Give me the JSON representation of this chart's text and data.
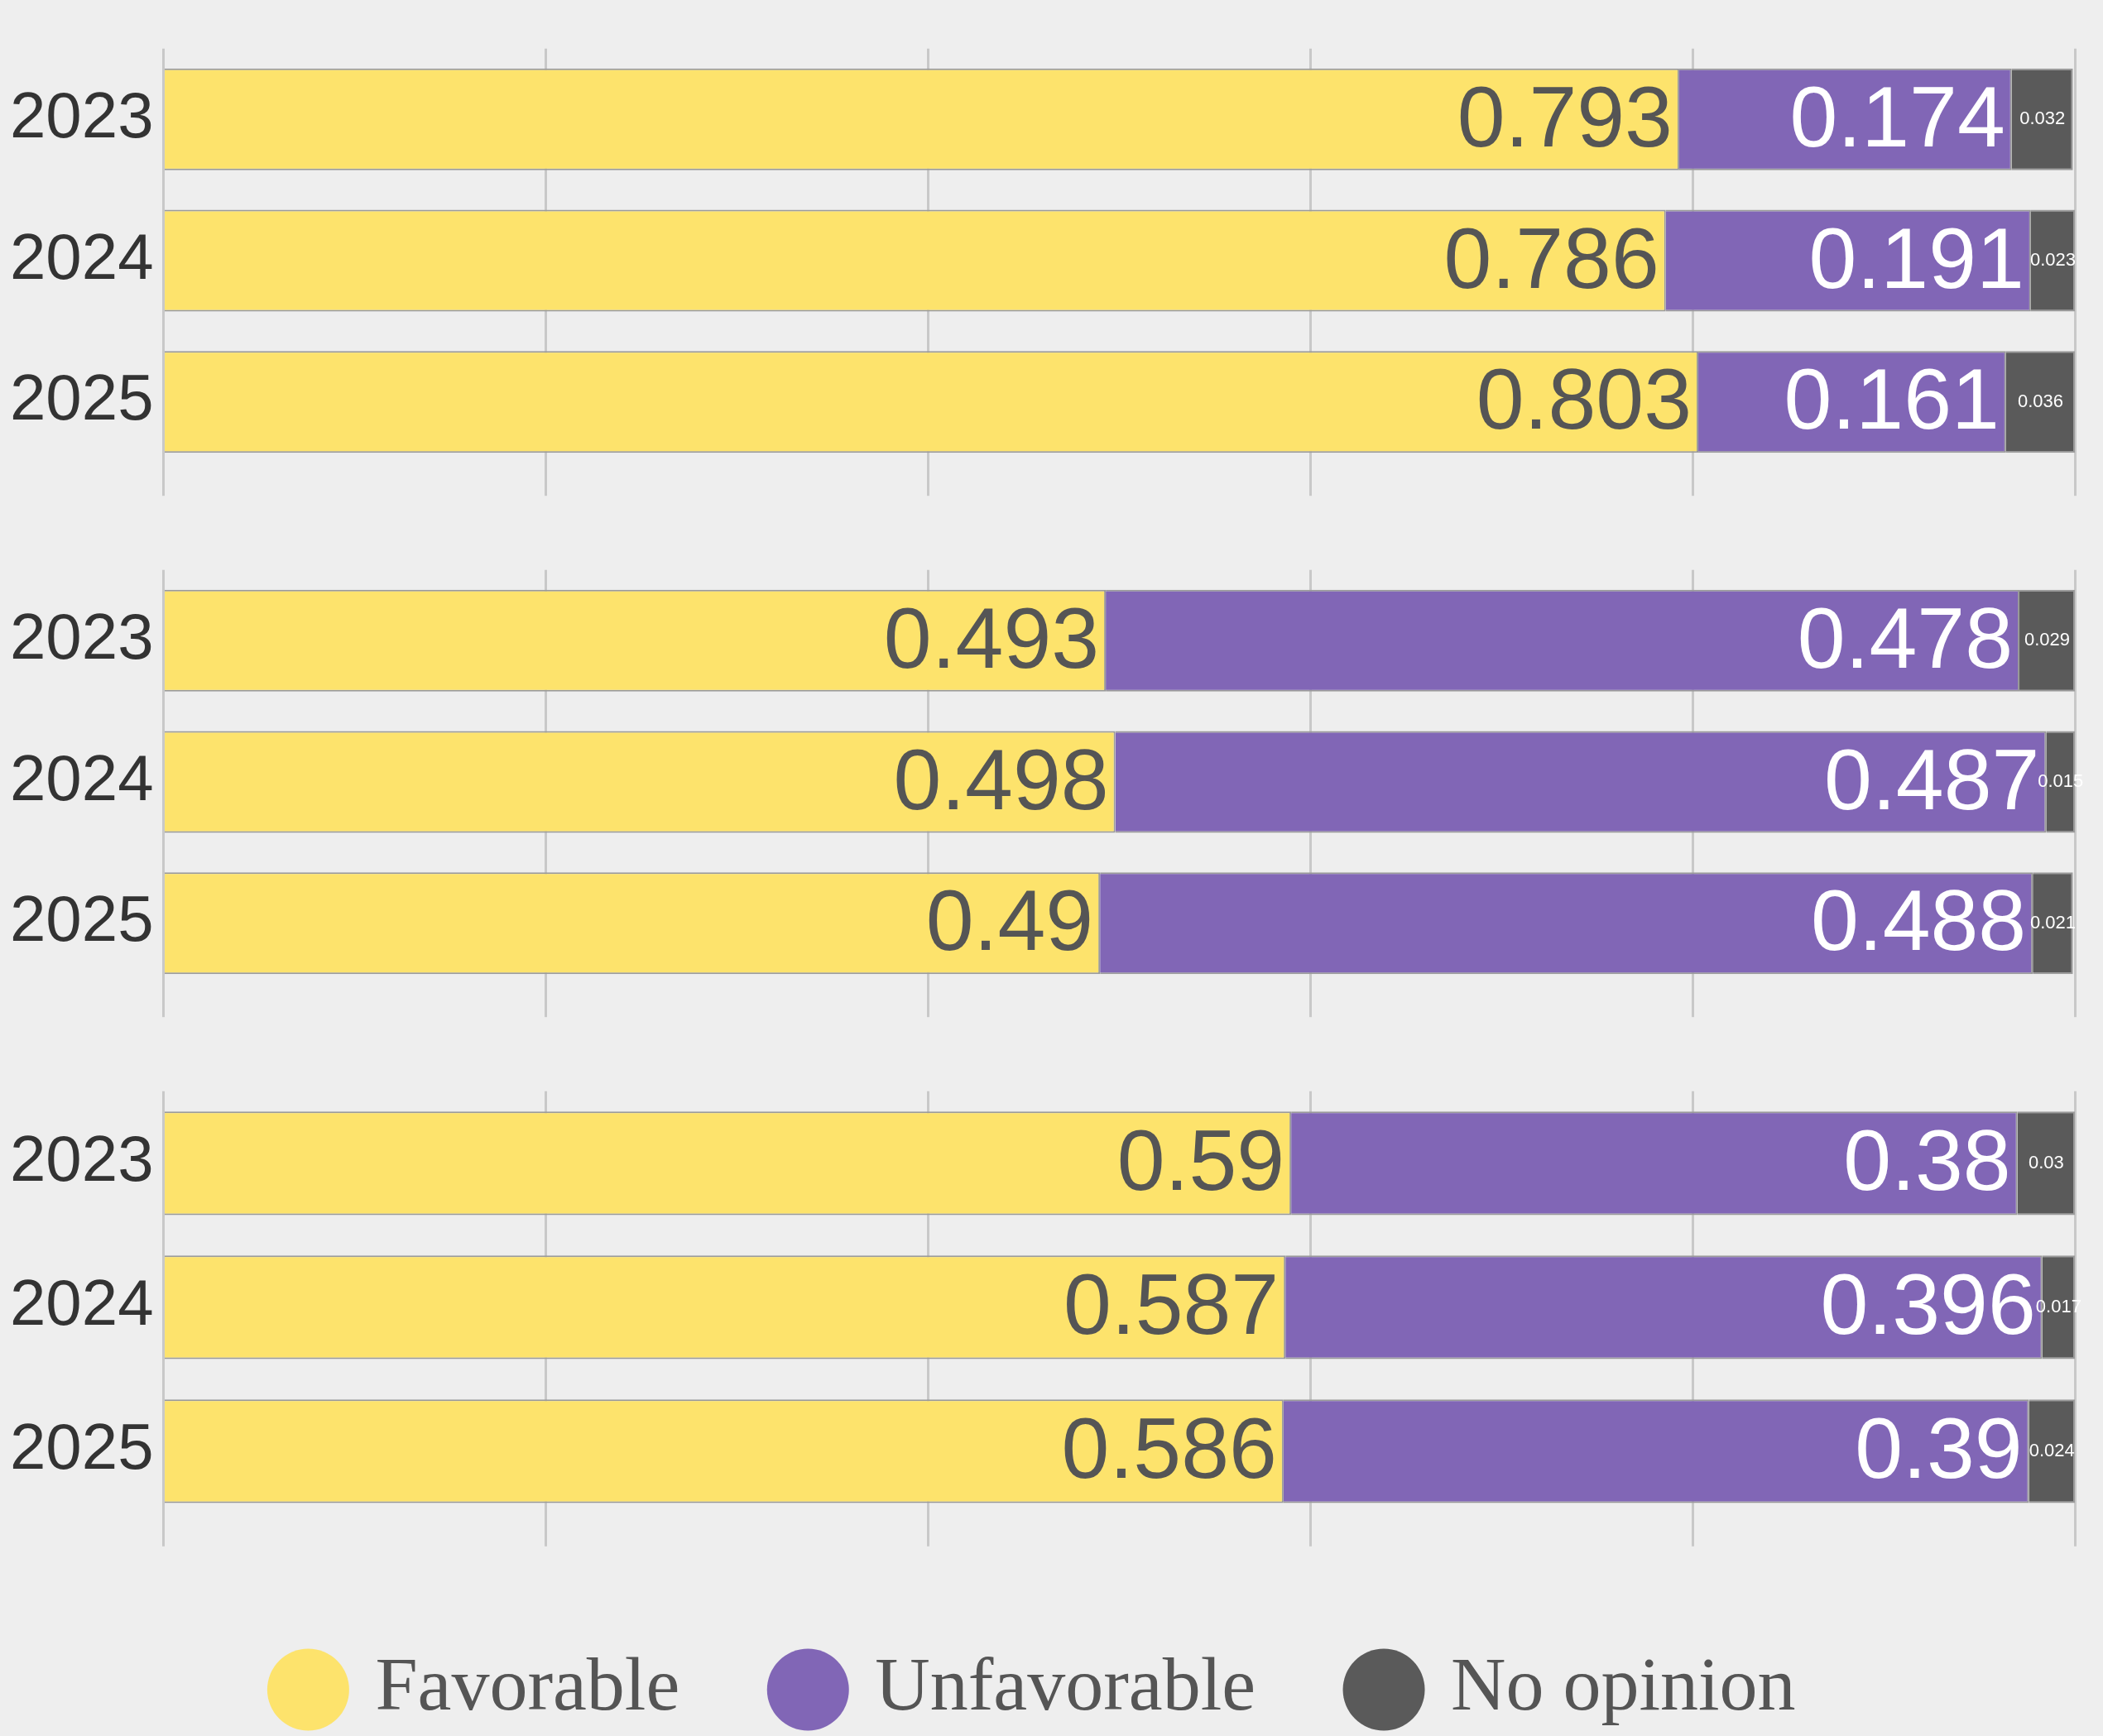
{
  "chart_data": [
    {
      "type": "bar",
      "orientation": "horizontal",
      "stacked": true,
      "categories": [
        "2023",
        "2024",
        "2025"
      ],
      "xlim": [
        0,
        1
      ],
      "xticks": [
        {
          "value": 0,
          "label": null
        },
        {
          "value": 0.2,
          "label": null
        },
        {
          "value": 0.4,
          "label": null
        },
        {
          "value": 0.6,
          "label": null
        },
        {
          "value": 0.8,
          "label": null
        },
        {
          "value": 1,
          "label": null
        }
      ],
      "tick_labels": "y",
      "grid": "x",
      "data_labels": true,
      "legend": false,
      "series": [
        {
          "color": "#fde36c",
          "values": [
            0.793,
            0.786,
            0.803
          ]
        },
        {
          "color": "#8166b6",
          "values": [
            0.174,
            0.191,
            0.161
          ]
        },
        {
          "color": "#5a5a5a",
          "values": [
            0.032,
            0.023,
            0.036
          ]
        }
      ]
    },
    {
      "type": "bar",
      "orientation": "horizontal",
      "stacked": true,
      "categories": [
        "2023",
        "2024",
        "2025"
      ],
      "xlim": [
        0,
        1
      ],
      "xticks": [
        {
          "value": 0,
          "label": null
        },
        {
          "value": 0.2,
          "label": null
        },
        {
          "value": 0.4,
          "label": null
        },
        {
          "value": 0.6,
          "label": null
        },
        {
          "value": 0.8,
          "label": null
        },
        {
          "value": 1,
          "label": null
        }
      ],
      "tick_labels": "y",
      "grid": "x",
      "data_labels": true,
      "legend": false,
      "series": [
        {
          "color": "#fde36c",
          "values": [
            0.493,
            0.498,
            0.49
          ]
        },
        {
          "color": "#8166b6",
          "values": [
            0.478,
            0.487,
            0.488
          ]
        },
        {
          "color": "#5a5a5a",
          "values": [
            0.029,
            0.015,
            0.021
          ]
        }
      ]
    },
    {
      "type": "bar",
      "orientation": "horizontal",
      "stacked": true,
      "categories": [
        "2023",
        "2024",
        "2025"
      ],
      "xlim": [
        0,
        1
      ],
      "xticks": [
        {
          "value": 0,
          "label": null
        },
        {
          "value": 0.2,
          "label": null
        },
        {
          "value": 0.4,
          "label": null
        },
        {
          "value": 0.6,
          "label": null
        },
        {
          "value": 0.8,
          "label": null
        },
        {
          "value": 1,
          "label": null
        }
      ],
      "tick_labels": "y",
      "grid": "x",
      "data_labels": true,
      "legend": "bottom",
      "series": [
        {
          "name": "Favorable",
          "color": "#fde36c",
          "values": [
            0.59,
            0.587,
            0.586
          ]
        },
        {
          "name": "Unfavorable",
          "color": "#8166b6",
          "values": [
            0.38,
            0.396,
            0.39
          ]
        },
        {
          "name": "No opinion",
          "color": "#5a5a5a",
          "values": [
            0.03,
            0.017,
            0.024
          ]
        }
      ]
    }
  ]
}
